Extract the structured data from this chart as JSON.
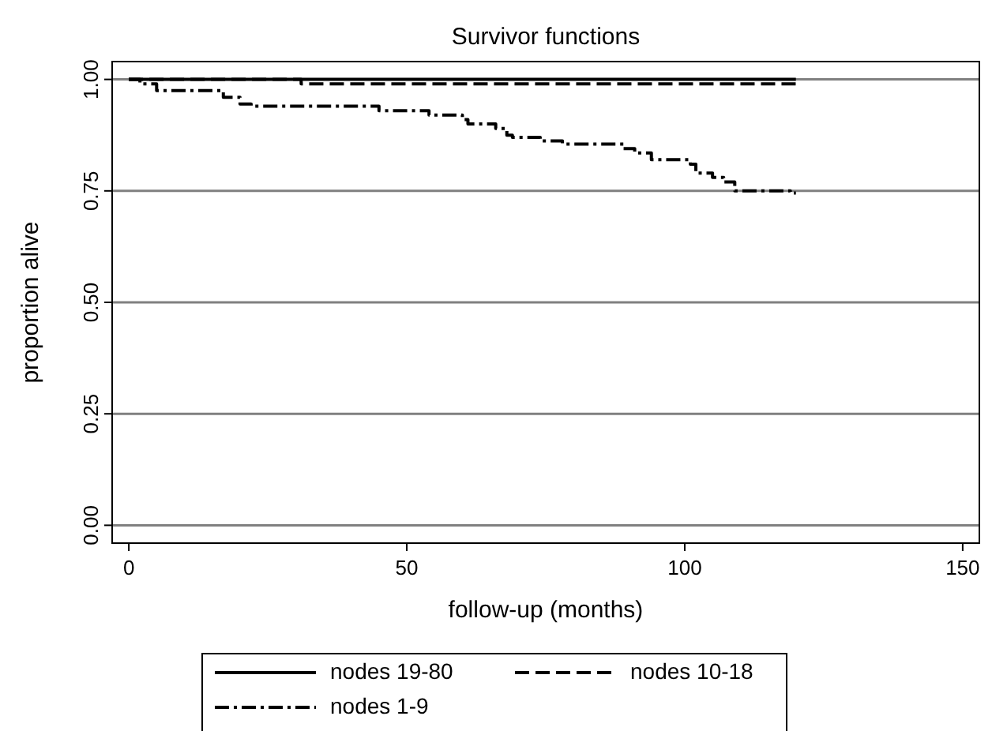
{
  "chart_data": {
    "type": "step",
    "title": "Survivor functions",
    "xlabel": "follow-up (months)",
    "ylabel": "proportion alive",
    "xlim": [
      -3,
      153
    ],
    "xticks": [
      0,
      50,
      100,
      150
    ],
    "ylim": [
      -0.04,
      1.04
    ],
    "yticks": [
      {
        "value": 0,
        "label": "0.00"
      },
      {
        "value": 0.25,
        "label": "0.25"
      },
      {
        "value": 0.5,
        "label": "0.50"
      },
      {
        "value": 0.75,
        "label": "0.75"
      },
      {
        "value": 1,
        "label": "1.00"
      }
    ],
    "grid": "y",
    "legend": "bottom",
    "series": [
      {
        "name": "nodes 19-80",
        "color": "#000000",
        "line_style": "solid",
        "x": [
          0,
          120
        ],
        "values": [
          1,
          1
        ]
      },
      {
        "name": "nodes 10-18",
        "color": "#000000",
        "line_style": "dashed",
        "x": [
          0,
          31,
          120
        ],
        "values": [
          1,
          0.99,
          0.99
        ]
      },
      {
        "name": "nodes 1-9",
        "color": "#000000",
        "line_style": "dashdot",
        "x": [
          0,
          2,
          5,
          17,
          20,
          22,
          45,
          54,
          60,
          61,
          66,
          68,
          69,
          74,
          78,
          89,
          91,
          94,
          101,
          102,
          105,
          107,
          109,
          119,
          120
        ],
        "values": [
          1,
          0.99,
          0.975,
          0.96,
          0.945,
          0.94,
          0.93,
          0.92,
          0.91,
          0.9,
          0.89,
          0.875,
          0.87,
          0.862,
          0.855,
          0.845,
          0.835,
          0.82,
          0.81,
          0.79,
          0.78,
          0.77,
          0.75,
          0.745,
          0.745
        ]
      }
    ]
  }
}
